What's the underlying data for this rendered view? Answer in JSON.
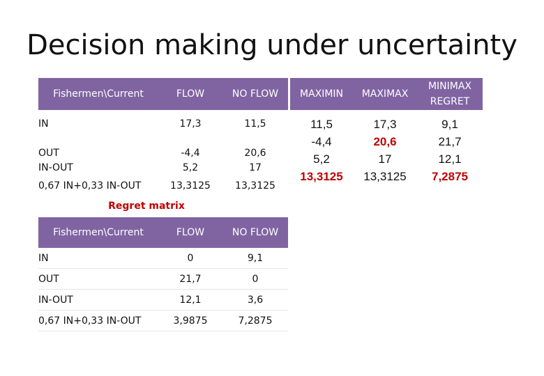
{
  "title": "Decision making under uncertainty",
  "main_table": {
    "headers": [
      "Fishermen\\Current",
      "FLOW",
      "NO FLOW"
    ],
    "rows": [
      {
        "label": "IN",
        "flow": "17,3",
        "noflow": "11,5"
      },
      {
        "label": "OUT",
        "flow": "-4,4",
        "noflow": "20,6"
      },
      {
        "label": "IN-OUT",
        "flow": "5,2",
        "noflow": "17"
      },
      {
        "label": "0,67 IN+0,33 IN-OUT",
        "flow": "13,3125",
        "noflow": "13,3125"
      }
    ]
  },
  "criteria": {
    "maximin": {
      "header": "MAXIMIN",
      "values": [
        "11,5",
        "-4,4",
        "5,2",
        "13,3125"
      ],
      "highlight_index": 3
    },
    "maximax": {
      "header": "MAXIMAX",
      "values": [
        "17,3",
        "20,6",
        "17",
        "13,3125"
      ],
      "highlight_index": 1
    },
    "minimax_regret": {
      "header_line1": "MINIMAX",
      "header_line2": "REGRET",
      "values": [
        "9,1",
        "21,7",
        "12,1",
        "7,2875"
      ],
      "highlight_index": 3
    }
  },
  "regret_title": "Regret matrix",
  "regret_table": {
    "headers": [
      "Fishermen\\Current",
      "FLOW",
      "NO FLOW"
    ],
    "rows": [
      {
        "label": "IN",
        "flow": "0",
        "noflow": "9,1"
      },
      {
        "label": "OUT",
        "flow": "21,7",
        "noflow": "0"
      },
      {
        "label": "IN-OUT",
        "flow": "12,1",
        "noflow": "3,6"
      },
      {
        "label": "0,67 IN+0,33 IN-OUT",
        "flow": "3,9875",
        "noflow": "7,2875"
      }
    ]
  },
  "colors": {
    "header_bg": "#8064a2",
    "highlight": "#c00000"
  }
}
